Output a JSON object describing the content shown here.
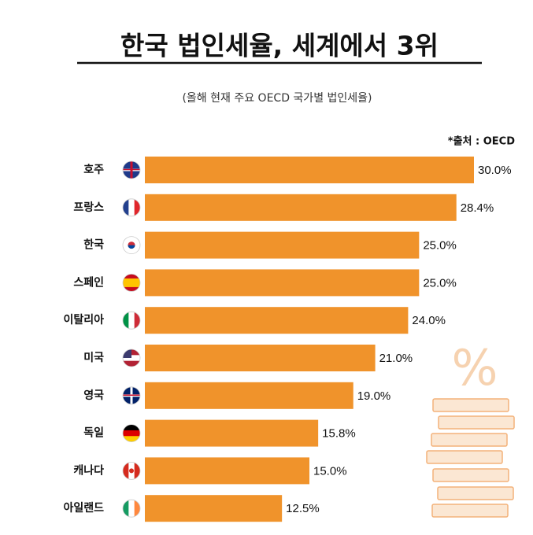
{
  "chart_data": {
    "type": "bar",
    "title": "한국 법인세율, 세계에서 3위",
    "subtitle": "(올해 현재 주요 OECD 국가별 법인세율)",
    "source": "*출처 :  OECD",
    "categories": [
      "호주",
      "프랑스",
      "한국",
      "스페인",
      "이탈리아",
      "미국",
      "영국",
      "독일",
      "캐나다",
      "아일랜드"
    ],
    "values": [
      30.0,
      28.4,
      25.0,
      25.0,
      24.0,
      21.0,
      19.0,
      15.8,
      15.0,
      12.5
    ],
    "value_labels": [
      "30.0%",
      "28.4%",
      "25.0%",
      "25.0%",
      "24.0%",
      "21.0%",
      "19.0%",
      "15.8%",
      "15.0%",
      "12.5%"
    ],
    "color": "#f0932b"
  }
}
